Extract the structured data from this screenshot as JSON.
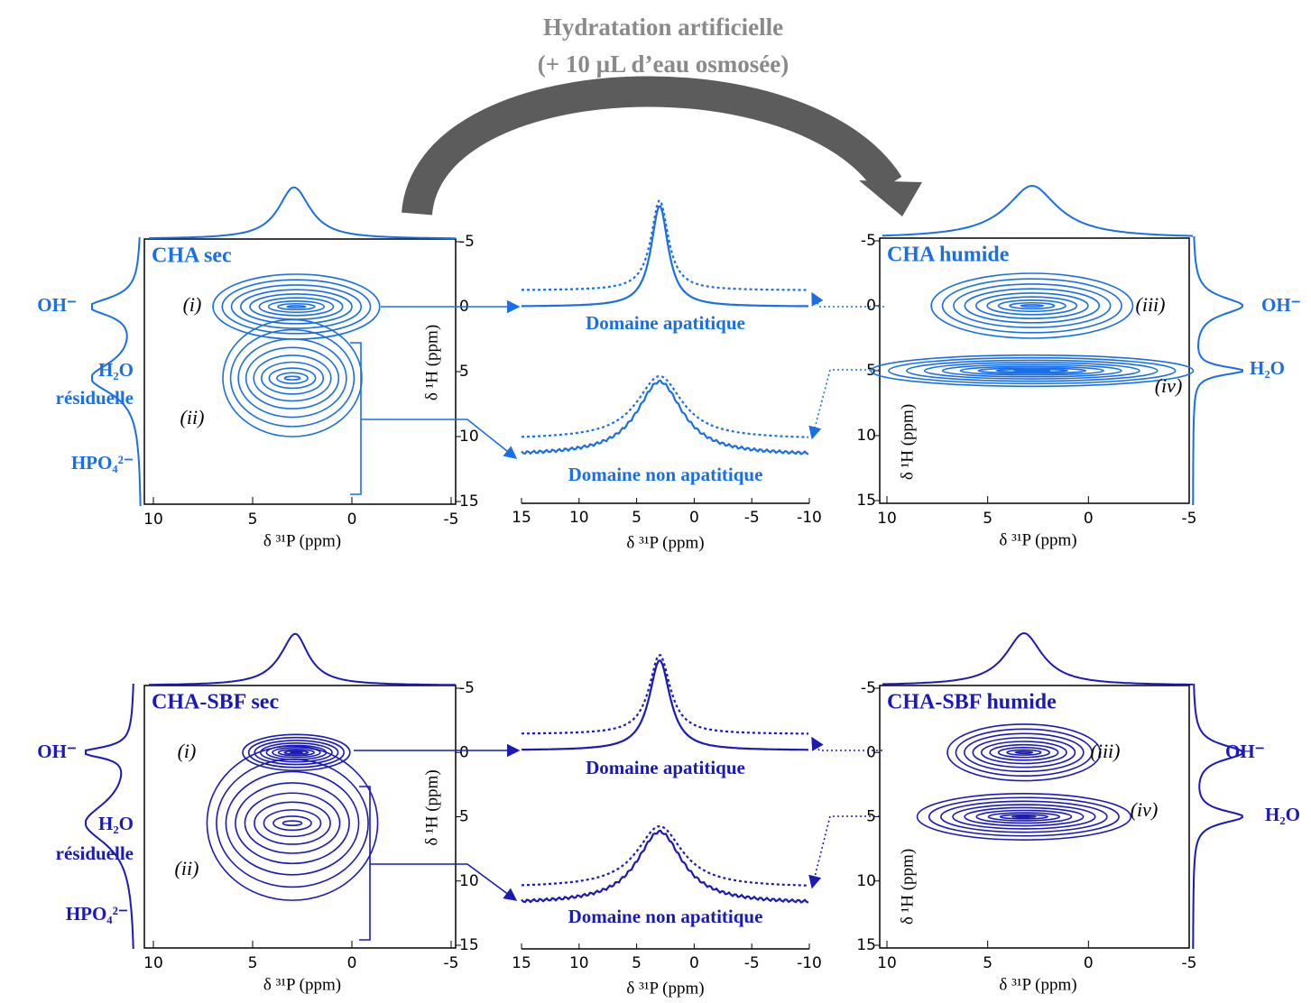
{
  "figure_title": [
    "Hydratation artificielle",
    "(+ 10 µL d’eau osmosée)"
  ],
  "chart_data": [
    {
      "type": "contour",
      "title": "CHA sec",
      "color": "#1a6fe6",
      "xlabel": "δ ³¹P (ppm)",
      "ylabel": "δ ¹H (ppm)",
      "xlim": [
        10,
        -5
      ],
      "ylim": [
        15,
        -5
      ],
      "xticks": [
        10,
        5,
        0,
        -5
      ],
      "yticks": [
        -5,
        0,
        5,
        10,
        15
      ],
      "y_axis": "right",
      "peaks": [
        {
          "label": "(i)",
          "x": 2.8,
          "y": 0,
          "x_width": 4.2,
          "y_width": 2.5
        },
        {
          "label": "(ii)",
          "x": 3,
          "y": 5.5,
          "x_width": 3.5,
          "y_width": 4.5
        }
      ],
      "projection_labels": [
        "OH⁻",
        "H₂O",
        "résiduelle",
        "HPO₄²⁻"
      ]
    },
    {
      "type": "slices",
      "xlabel": "δ ³¹P (ppm)",
      "xlim": [
        15,
        -10
      ],
      "xticks": [
        15,
        10,
        5,
        0,
        -5,
        -10
      ],
      "series": [
        {
          "name": "Domaine apatitique",
          "color": "#1a6fe6",
          "center": 3,
          "width": 0.9
        },
        {
          "name": "Domaine non apatitique",
          "color": "#1a6fe6",
          "center": 3,
          "width": 2.4
        }
      ]
    },
    {
      "type": "contour",
      "title": "CHA humide",
      "color": "#1a6fe6",
      "xlabel": "δ ³¹P (ppm)",
      "ylabel": "δ ¹H (ppm)",
      "xlim": [
        10,
        -5
      ],
      "ylim": [
        15,
        -5
      ],
      "xticks": [
        10,
        5,
        0,
        -5
      ],
      "yticks": [
        -5,
        0,
        5,
        10,
        15
      ],
      "y_axis": "left",
      "peaks": [
        {
          "label": "(iii)",
          "x": 2.8,
          "y": 0,
          "x_width": 5,
          "y_width": 2.5
        },
        {
          "label": "(iv)",
          "x": 2.8,
          "y": 5,
          "x_width": 8,
          "y_width": 1.2
        }
      ],
      "projection_labels": [
        "OH⁻",
        "H₂O"
      ]
    },
    {
      "type": "contour",
      "title": "CHA-SBF sec",
      "color": "#1a1ab8",
      "xlabel": "δ ³¹P (ppm)",
      "ylabel": "δ ¹H (ppm)",
      "xlim": [
        10,
        -5
      ],
      "ylim": [
        15,
        -5
      ],
      "xticks": [
        10,
        5,
        0,
        -5
      ],
      "yticks": [
        -5,
        0,
        5,
        10,
        15
      ],
      "y_axis": "right",
      "peaks": [
        {
          "label": "(i)",
          "x": 2.8,
          "y": 0,
          "x_width": 2.7,
          "y_width": 1.4
        },
        {
          "label": "(ii)",
          "x": 3,
          "y": 5.5,
          "x_width": 4.3,
          "y_width": 6
        }
      ],
      "projection_labels": [
        "OH⁻",
        "H₂O",
        "résiduelle",
        "HPO₄²⁻"
      ]
    },
    {
      "type": "slices",
      "xlabel": "δ ³¹P (ppm)",
      "xlim": [
        15,
        -10
      ],
      "xticks": [
        15,
        10,
        5,
        0,
        -5,
        -10
      ],
      "series": [
        {
          "name": "Domaine apatitique",
          "color": "#1a1ab8",
          "center": 3,
          "width": 1.1
        },
        {
          "name": "Domaine non apatitique",
          "color": "#1a1ab8",
          "center": 3,
          "width": 2.4
        }
      ]
    },
    {
      "type": "contour",
      "title": "CHA-SBF humide",
      "color": "#1a1ab8",
      "xlabel": "δ ³¹P (ppm)",
      "ylabel": "δ ¹H (ppm)",
      "xlim": [
        10,
        -5
      ],
      "ylim": [
        15,
        -5
      ],
      "xticks": [
        10,
        5,
        0,
        -5
      ],
      "yticks": [
        -5,
        0,
        5,
        10,
        15
      ],
      "y_axis": "left",
      "peaks": [
        {
          "label": "(iii)",
          "x": 3.2,
          "y": 0,
          "x_width": 3.8,
          "y_width": 2.2
        },
        {
          "label": "(iv)",
          "x": 3.2,
          "y": 5,
          "x_width": 5.3,
          "y_width": 1.8
        }
      ],
      "projection_labels": [
        "OH⁻",
        "H₂O"
      ]
    }
  ]
}
